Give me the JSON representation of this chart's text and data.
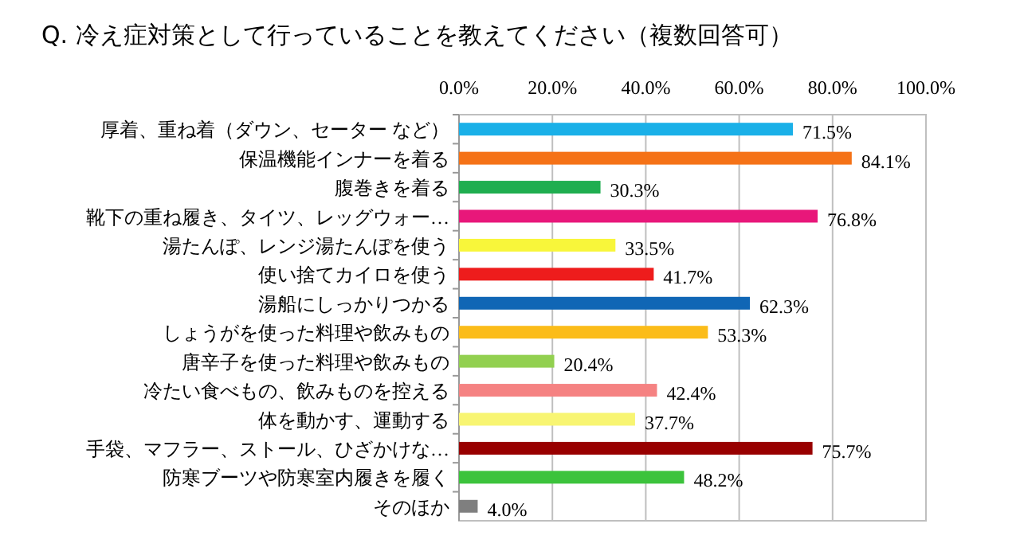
{
  "chart_data": {
    "type": "bar",
    "orientation": "horizontal",
    "title": "Q. 冷え症対策として行っていることを教えてください（複数回答可）",
    "categories": [
      "厚着、重ね着（ダウン、セーター など）",
      "保温機能インナーを着る",
      "腹巻きを着る",
      "靴下の重ね履き、タイツ、レッグウォー…",
      "湯たんぽ、レンジ湯たんぽを使う",
      "使い捨てカイロを使う",
      "湯船にしっかりつかる",
      "しょうがを使った料理や飲みもの",
      "唐辛子を使った料理や飲みもの",
      "冷たい食べもの、飲みものを控える",
      "体を動かす、運動する",
      "手袋、マフラー、ストール、ひざかけな…",
      "防寒ブーツや防寒室内履きを履く",
      "そのほか"
    ],
    "values": [
      71.5,
      84.1,
      30.3,
      76.8,
      33.5,
      41.7,
      62.3,
      53.3,
      20.4,
      42.4,
      37.7,
      75.7,
      48.2,
      4.0
    ],
    "colors": [
      "#1ab0e8",
      "#f57217",
      "#1fae50",
      "#e8177a",
      "#f8f63a",
      "#ee1c1c",
      "#1066b5",
      "#fbbc19",
      "#92d050",
      "#f58282",
      "#f8f572",
      "#980000",
      "#3cc33c",
      "#7f7f7f"
    ],
    "value_labels": [
      "71.5%",
      "84.1%",
      "30.3%",
      "76.8%",
      "33.5%",
      "41.7%",
      "62.3%",
      "53.3%",
      "20.4%",
      "42.4%",
      "37.7%",
      "75.7%",
      "48.2%",
      "4.0%"
    ],
    "xlim": [
      0,
      100
    ],
    "xticks": [
      {
        "value": 0,
        "label": "0.0%"
      },
      {
        "value": 20,
        "label": "20.0%"
      },
      {
        "value": 40,
        "label": "40.0%"
      },
      {
        "value": 60,
        "label": "60.0%"
      },
      {
        "value": 80,
        "label": "80.0%"
      },
      {
        "value": 100,
        "label": "100.0%"
      }
    ],
    "grid": "x"
  }
}
